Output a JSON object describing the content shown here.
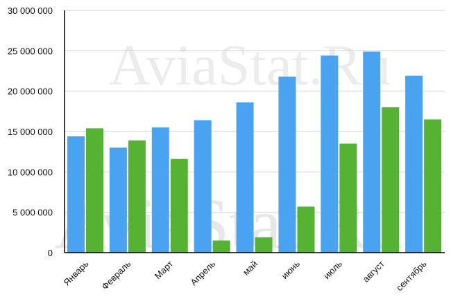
{
  "chart_data": {
    "type": "bar",
    "categories": [
      "Январь",
      "Февраль",
      "Март",
      "Апрель",
      "май",
      "июнь",
      "июль",
      "август",
      "сентябрь"
    ],
    "series": [
      {
        "color": "#4aa3f0",
        "values": [
          14400000,
          13000000,
          15500000,
          16400000,
          18600000,
          21800000,
          24400000,
          24900000,
          21900000
        ]
      },
      {
        "color": "#56b233",
        "values": [
          15400000,
          13900000,
          11600000,
          1500000,
          1900000,
          5700000,
          13500000,
          18000000,
          16500000
        ]
      }
    ],
    "ylim": [
      0,
      30000000
    ],
    "yticks": [
      0,
      5000000,
      10000000,
      15000000,
      20000000,
      25000000,
      30000000
    ],
    "ytick_labels": [
      "0",
      "5 000 000",
      "10 000 000",
      "15 000 000",
      "20 000 000",
      "25 000 000",
      "30 000 000"
    ],
    "grid": true,
    "watermark": "AviaStat.Ru"
  }
}
